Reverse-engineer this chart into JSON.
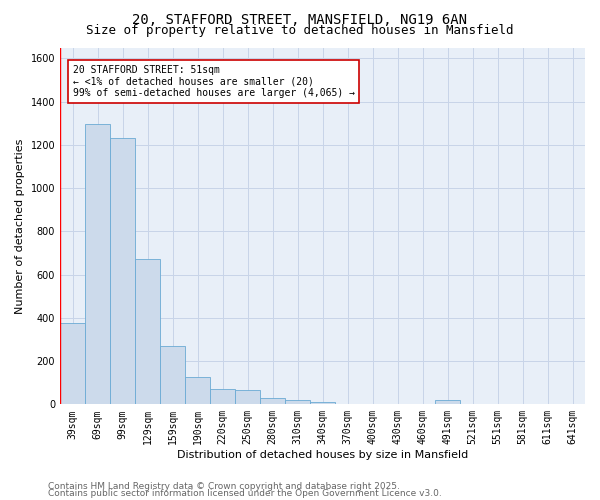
{
  "title1": "20, STAFFORD STREET, MANSFIELD, NG19 6AN",
  "title2": "Size of property relative to detached houses in Mansfield",
  "xlabel": "Distribution of detached houses by size in Mansfield",
  "ylabel": "Number of detached properties",
  "categories": [
    "39sqm",
    "69sqm",
    "99sqm",
    "129sqm",
    "159sqm",
    "190sqm",
    "220sqm",
    "250sqm",
    "280sqm",
    "310sqm",
    "340sqm",
    "370sqm",
    "400sqm",
    "430sqm",
    "460sqm",
    "491sqm",
    "521sqm",
    "551sqm",
    "581sqm",
    "611sqm",
    "641sqm"
  ],
  "values": [
    375,
    1295,
    1230,
    670,
    270,
    125,
    70,
    65,
    30,
    18,
    12,
    0,
    0,
    0,
    0,
    18,
    0,
    0,
    0,
    0,
    0
  ],
  "bar_color": "#ccdaeb",
  "bar_edge_color": "#6aaad4",
  "annotation_text": "20 STAFFORD STREET: 51sqm\n← <1% of detached houses are smaller (20)\n99% of semi-detached houses are larger (4,065) →",
  "annotation_box_color": "#ffffff",
  "annotation_box_edge": "#cc0000",
  "ylim": [
    0,
    1650
  ],
  "yticks": [
    0,
    200,
    400,
    600,
    800,
    1000,
    1200,
    1400,
    1600
  ],
  "grid_color": "#c8d4e8",
  "bg_color": "#e8eff8",
  "footer1": "Contains HM Land Registry data © Crown copyright and database right 2025.",
  "footer2": "Contains public sector information licensed under the Open Government Licence v3.0.",
  "title_fontsize": 10,
  "subtitle_fontsize": 9,
  "axis_label_fontsize": 8,
  "tick_fontsize": 7,
  "annotation_fontsize": 7,
  "footer_fontsize": 6.5
}
